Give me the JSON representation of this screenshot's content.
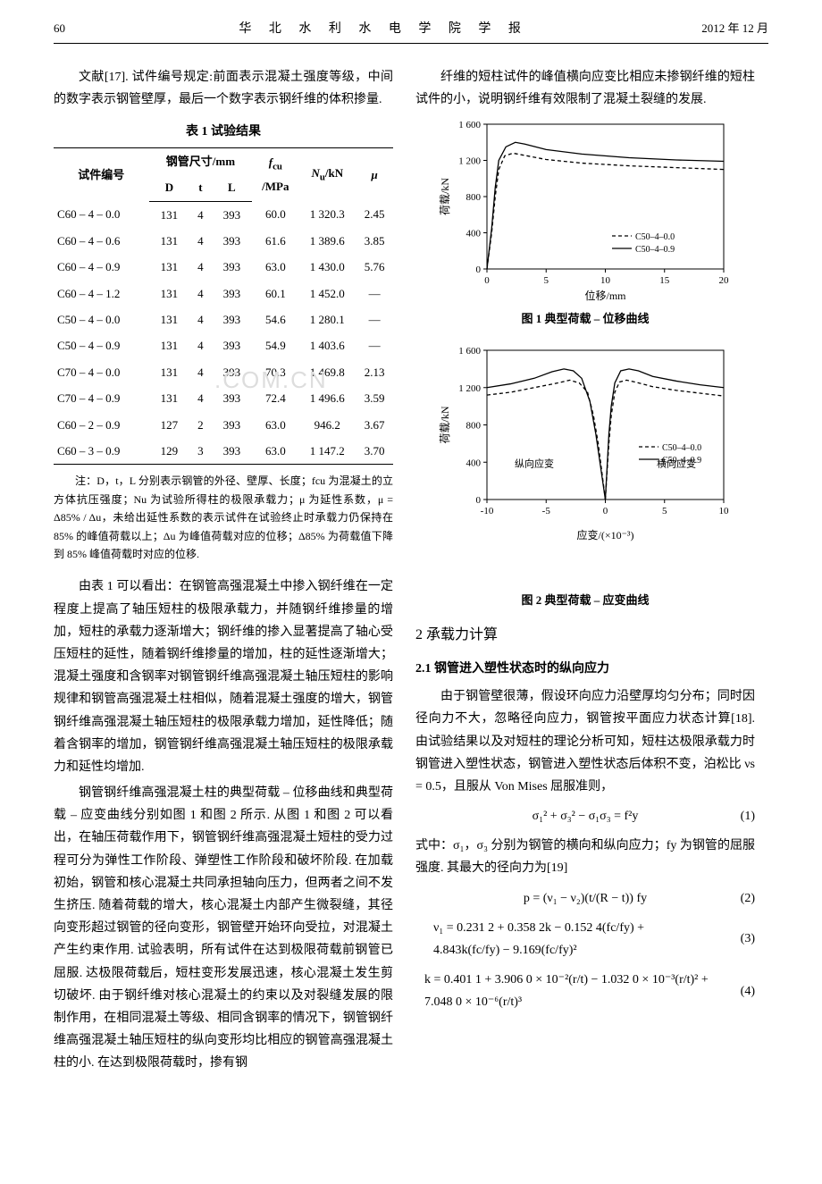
{
  "header": {
    "page": "60",
    "journal": "华 北 水 利 水 电 学 院 学 报",
    "date": "2012 年 12 月"
  },
  "left": {
    "p1": "文献[17]. 试件编号规定:前面表示混凝土强度等级，中间的数字表示钢管壁厚，最后一个数字表示钢纤维的体积掺量.",
    "table1_title": "表 1  试验结果",
    "table1": {
      "group_header": "钢管尺寸/mm",
      "columns": [
        "试件编号",
        "D",
        "t",
        "L",
        "fcu /MPa",
        "Nu/kN",
        "μ"
      ],
      "rows": [
        [
          "C60 – 4 – 0.0",
          "131",
          "4",
          "393",
          "60.0",
          "1 320.3",
          "2.45"
        ],
        [
          "C60 – 4 – 0.6",
          "131",
          "4",
          "393",
          "61.6",
          "1 389.6",
          "3.85"
        ],
        [
          "C60 – 4 – 0.9",
          "131",
          "4",
          "393",
          "63.0",
          "1 430.0",
          "5.76"
        ],
        [
          "C60 – 4 – 1.2",
          "131",
          "4",
          "393",
          "60.1",
          "1 452.0",
          "—"
        ],
        [
          "C50 – 4 – 0.0",
          "131",
          "4",
          "393",
          "54.6",
          "1 280.1",
          "—"
        ],
        [
          "C50 – 4 – 0.9",
          "131",
          "4",
          "393",
          "54.9",
          "1 403.6",
          "—"
        ],
        [
          "C70 – 4 – 0.0",
          "131",
          "4",
          "393",
          "70.3",
          "1 469.8",
          "2.13"
        ],
        [
          "C70 – 4 – 0.9",
          "131",
          "4",
          "393",
          "72.4",
          "1 496.6",
          "3.59"
        ],
        [
          "C60 – 2 – 0.9",
          "127",
          "2",
          "393",
          "63.0",
          "946.2",
          "3.67"
        ],
        [
          "C60 – 3 – 0.9",
          "129",
          "3",
          "393",
          "63.0",
          "1 147.2",
          "3.70"
        ]
      ]
    },
    "note": "注：D，t，L 分别表示钢管的外径、壁厚、长度；fcu 为混凝土的立方体抗压强度；Nu 为试验所得柱的极限承载力；μ 为延性系数，μ = Δ85% / Δu，未给出延性系数的表示试件在试验终止时承载力仍保持在 85% 的峰值荷载以上；Δu 为峰值荷载对应的位移；Δ85% 为荷载值下降到 85% 峰值荷载时对应的位移.",
    "p2": "由表 1 可以看出：在钢管高强混凝土中掺入钢纤维在一定程度上提高了轴压短柱的极限承载力，并随钢纤维掺量的增加，短柱的承载力逐渐增大；钢纤维的掺入显著提高了轴心受压短柱的延性，随着钢纤维掺量的增加，柱的延性逐渐增大；混凝土强度和含钢率对钢管钢纤维高强混凝土轴压短柱的影响规律和钢管高强混凝土柱相似，随着混凝土强度的增大，钢管钢纤维高强混凝土轴压短柱的极限承载力增加，延性降低；随着含钢率的增加，钢管钢纤维高强混凝土轴压短柱的极限承载力和延性均增加.",
    "p3": "钢管钢纤维高强混凝土柱的典型荷载 – 位移曲线和典型荷载 – 应变曲线分别如图 1 和图 2 所示. 从图 1 和图 2 可以看出，在轴压荷载作用下，钢管钢纤维高强混凝土短柱的受力过程可分为弹性工作阶段、弹塑性工作阶段和破坏阶段. 在加载初始，钢管和核心混凝土共同承担轴向压力，但两者之间不发生挤压. 随着荷载的增大，核心混凝土内部产生微裂缝，其径向变形超过钢管的径向变形，钢管壁开始环向受拉，对混凝土产生约束作用. 试验表明，所有试件在达到极限荷载前钢管已屈服. 达极限荷载后，短柱变形发展迅速，核心混凝土发生剪切破坏. 由于钢纤维对核心混凝土的约束以及对裂缝发展的限制作用，在相同混凝土等级、相同含钢率的情况下，钢管钢纤维高强混凝土轴压短柱的纵向变形均比相应的钢管高强混凝土柱的小. 在达到极限荷载时，掺有钢"
  },
  "right": {
    "p1": "纤维的短柱试件的峰值横向应变比相应未掺钢纤维的短柱试件的小，说明钢纤维有效限制了混凝土裂缝的发展.",
    "fig1": {
      "caption": "图 1  典型荷载 – 位移曲线",
      "xlabel": "位移/mm",
      "ylabel": "荷载/kN",
      "xlim": [
        0,
        20
      ],
      "ylim": [
        0,
        1600
      ],
      "xticks": [
        0,
        5,
        10,
        15,
        20
      ],
      "yticks": [
        0,
        400,
        800,
        1200,
        1600
      ],
      "legends": [
        "C50–4–0.0",
        "C50–4–0.9"
      ],
      "series": [
        {
          "name": "C50–4–0.0",
          "dash": "4,3",
          "color": "#000000",
          "points": [
            [
              0,
              0
            ],
            [
              0.4,
              400
            ],
            [
              0.7,
              800
            ],
            [
              1.0,
              1100
            ],
            [
              1.5,
              1250
            ],
            [
              2.2,
              1280
            ],
            [
              3.0,
              1260
            ],
            [
              5,
              1210
            ],
            [
              8,
              1170
            ],
            [
              12,
              1140
            ],
            [
              16,
              1120
            ],
            [
              20,
              1100
            ]
          ]
        },
        {
          "name": "C50–4–0.9",
          "dash": "none",
          "color": "#000000",
          "points": [
            [
              0,
              0
            ],
            [
              0.4,
              450
            ],
            [
              0.7,
              900
            ],
            [
              1.0,
              1200
            ],
            [
              1.6,
              1350
            ],
            [
              2.4,
              1400
            ],
            [
              3.2,
              1380
            ],
            [
              5,
              1320
            ],
            [
              8,
              1270
            ],
            [
              12,
              1230
            ],
            [
              16,
              1205
            ],
            [
              20,
              1190
            ]
          ]
        }
      ]
    },
    "fig2": {
      "caption": "图 2  典型荷载 – 应变曲线",
      "xlabel": "应变/(×10⁻³)",
      "ylabel": "荷载/kN",
      "xlim": [
        -10,
        10
      ],
      "ylim": [
        0,
        1600
      ],
      "xticks": [
        -10,
        -5,
        0,
        5,
        10
      ],
      "yticks": [
        0,
        400,
        800,
        1200,
        1600
      ],
      "label_left": "纵向应变",
      "label_right": "横向应变",
      "legends": [
        "C50–4–0.0",
        "C50–4–0.9"
      ],
      "series": [
        {
          "name": "C50–4–0.0-L",
          "dash": "4,3",
          "color": "#000000",
          "points": [
            [
              -10,
              1120
            ],
            [
              -8,
              1150
            ],
            [
              -6,
              1200
            ],
            [
              -4,
              1250
            ],
            [
              -3,
              1280
            ],
            [
              -2.2,
              1250
            ],
            [
              -1.5,
              1150
            ],
            [
              -1.0,
              900
            ],
            [
              -0.6,
              600
            ],
            [
              -0.3,
              300
            ],
            [
              0,
              0
            ]
          ]
        },
        {
          "name": "C50–4–0.9-L",
          "dash": "none",
          "color": "#000000",
          "points": [
            [
              -10,
              1200
            ],
            [
              -8,
              1240
            ],
            [
              -6,
              1300
            ],
            [
              -4.5,
              1370
            ],
            [
              -3.5,
              1400
            ],
            [
              -2.7,
              1380
            ],
            [
              -2.0,
              1300
            ],
            [
              -1.3,
              1050
            ],
            [
              -0.8,
              700
            ],
            [
              -0.4,
              350
            ],
            [
              0,
              0
            ]
          ]
        },
        {
          "name": "C50–4–0.0-R",
          "dash": "4,3",
          "color": "#000000",
          "points": [
            [
              0,
              0
            ],
            [
              0.15,
              300
            ],
            [
              0.3,
              600
            ],
            [
              0.5,
              900
            ],
            [
              0.8,
              1150
            ],
            [
              1.2,
              1260
            ],
            [
              1.8,
              1280
            ],
            [
              2.5,
              1260
            ],
            [
              4,
              1210
            ],
            [
              6,
              1170
            ],
            [
              8,
              1140
            ],
            [
              10,
              1110
            ]
          ]
        },
        {
          "name": "C50–4–0.9-R",
          "dash": "none",
          "color": "#000000",
          "points": [
            [
              0,
              0
            ],
            [
              0.15,
              350
            ],
            [
              0.3,
              700
            ],
            [
              0.5,
              1000
            ],
            [
              0.8,
              1250
            ],
            [
              1.3,
              1380
            ],
            [
              2.0,
              1400
            ],
            [
              2.8,
              1380
            ],
            [
              4,
              1320
            ],
            [
              6,
              1270
            ],
            [
              8,
              1230
            ],
            [
              10,
              1200
            ]
          ]
        }
      ]
    },
    "section2_title": "2  承载力计算",
    "section21_title": "2.1  钢管进入塑性状态时的纵向应力",
    "p2": "由于钢管壁很薄，假设环向应力沿壁厚均匀分布；同时因径向力不大，忽略径向应力，钢管按平面应力状态计算[18]. 由试验结果以及对短柱的理论分析可知，短柱达极限承载力时钢管进入塑性状态，钢管进入塑性状态后体积不变，泊松比 νs = 0.5，且服从 Von Mises 屈服准则，",
    "eq1": "σ₁² + σ₃² − σ₁σ₃ = f²y",
    "eq1_num": "(1)",
    "p3": "式中：σ₁，σ₃ 分别为钢管的横向和纵向应力；fy 为钢管的屈服强度. 其最大的径向力为[19]",
    "eq2": "p = (ν₁ − ν₂)(t/(R − t)) fy",
    "eq2_num": "(2)",
    "eq3": "ν₁ = 0.231 2 + 0.358 2k − 0.152 4(fc/fy) + 4.843k(fc/fy) − 9.169(fc/fy)²",
    "eq3_num": "(3)",
    "eq4": "k = 0.401 1 + 3.906 0 × 10⁻²(r/t) − 1.032 0 × 10⁻³(r/t)² + 7.048 0 × 10⁻⁶(r/t)³",
    "eq4_num": "(4)"
  },
  "watermark": ".COM.CN"
}
